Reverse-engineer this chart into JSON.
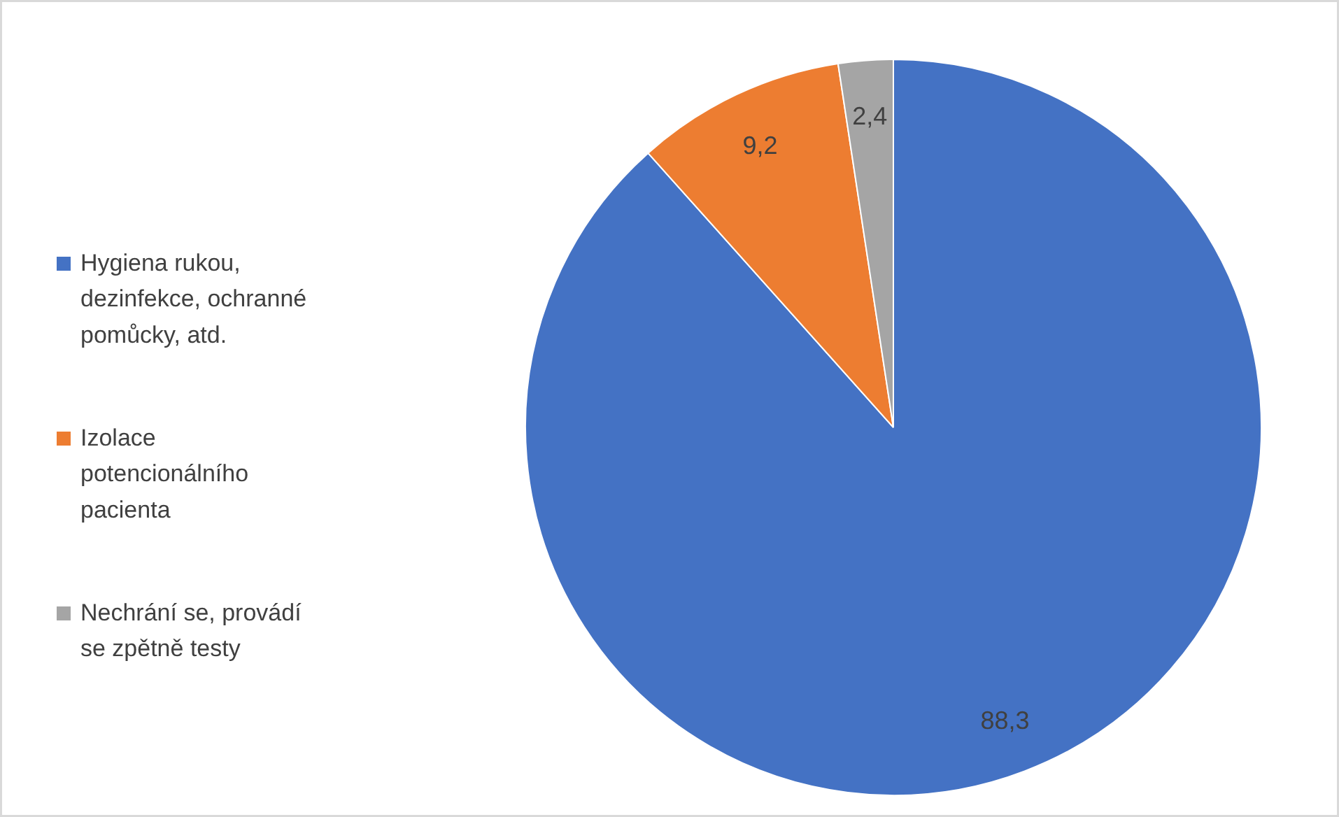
{
  "chart_data": {
    "type": "pie",
    "categories": [
      "Hygiena rukou, dezinfekce, ochranné pomůcky, atd.",
      "Izolace potencionálního pacienta",
      "Nechrání se, provádí se zpětně testy"
    ],
    "values": [
      88.3,
      9.2,
      2.4
    ],
    "colors": [
      "#4472c4",
      "#ed7d31",
      "#a5a5a5"
    ],
    "value_labels": [
      "88,3",
      "9,2",
      "2,4"
    ],
    "legend": "left"
  }
}
